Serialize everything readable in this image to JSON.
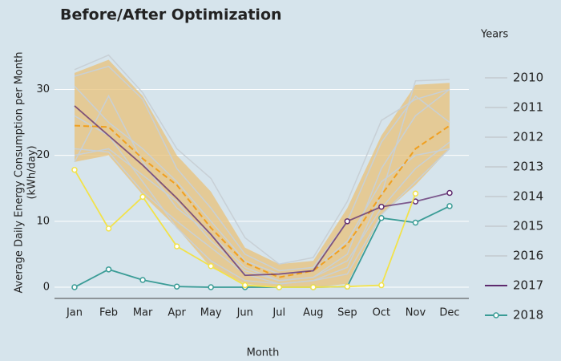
{
  "chart_data": {
    "type": "line",
    "title": "Before/After Optimization",
    "x_label": "Month",
    "y_label": [
      "Average Daily Energy Consumption per Month",
      "(kWh/day)"
    ],
    "legend_title": "Years",
    "categories": [
      "Jan",
      "Feb",
      "Mar",
      "Apr",
      "May",
      "Jun",
      "Jul",
      "Aug",
      "Sep",
      "Oct",
      "Nov",
      "Dec"
    ],
    "ylim": [
      -1.7,
      39.3
    ],
    "yticks": [
      0,
      10,
      20,
      30
    ],
    "grid": true,
    "band": {
      "color": "#e8c27a",
      "upper": [
        32.5,
        34.5,
        29,
        20,
        14.5,
        6,
        3.5,
        4,
        12,
        23,
        30.7,
        31
      ],
      "lower": [
        19,
        20,
        14,
        9,
        3,
        0.5,
        0,
        0,
        0.5,
        11,
        15.5,
        21
      ]
    },
    "mean": {
      "color": "#f0a020",
      "values": [
        24.5,
        24.3,
        19.5,
        15.5,
        9,
        3.7,
        1.5,
        2.5,
        6.5,
        14,
        21,
        24.5
      ]
    },
    "series": [
      {
        "name": "2010",
        "color": "#c8d0d6",
        "values": [
          33,
          35.2,
          29.5,
          21,
          16.5,
          7.5,
          3.5,
          4.5,
          13,
          25.3,
          28.5,
          30
        ]
      },
      {
        "name": "2011",
        "color": "#c8d0d6",
        "values": [
          21,
          20.5,
          14.5,
          10,
          6,
          2,
          0.5,
          1,
          3,
          14,
          31.3,
          31.5
        ]
      },
      {
        "name": "2012",
        "color": "#c8d0d6",
        "values": [
          32,
          33.5,
          28.5,
          18,
          12,
          5,
          2.5,
          3,
          10,
          22,
          29,
          25
        ]
      },
      {
        "name": "2013",
        "color": "#c8d0d6",
        "values": [
          19,
          29,
          19,
          12,
          8,
          3,
          1,
          1.5,
          5,
          18,
          26,
          30
        ]
      },
      {
        "name": "2014",
        "color": "#c8d0d6",
        "values": [
          30.5,
          25,
          21,
          16,
          10,
          4,
          2,
          2.5,
          7,
          16,
          20,
          21
        ]
      },
      {
        "name": "2015",
        "color": "#c8d0d6",
        "values": [
          20,
          21,
          17,
          13,
          7,
          2.5,
          1,
          1.5,
          4,
          12,
          18,
          22
        ]
      },
      {
        "name": "2016",
        "color": "#c8d0d6",
        "values": [
          26,
          23,
          16,
          9,
          4,
          1,
          0.5,
          1,
          2,
          11,
          16,
          21
        ]
      },
      {
        "name": "2017",
        "color": "#5e2a6e",
        "values": [
          27.5,
          23,
          18.5,
          13.5,
          8,
          1.8,
          2,
          2.5,
          10,
          12.2,
          13,
          14.3
        ]
      },
      {
        "name": "2018",
        "color": "#3a9c96",
        "markers": true,
        "values": [
          0,
          2.7,
          1.1,
          0.1,
          0,
          0,
          0,
          0,
          0.1,
          10.5,
          9.8,
          12.3
        ]
      },
      {
        "color": "#f2e24a",
        "markers": true,
        "values": [
          17.8,
          8.9,
          13.7,
          6.2,
          3.2,
          0.3,
          0,
          0,
          0.1,
          0.3,
          14.2,
          null
        ]
      }
    ]
  }
}
